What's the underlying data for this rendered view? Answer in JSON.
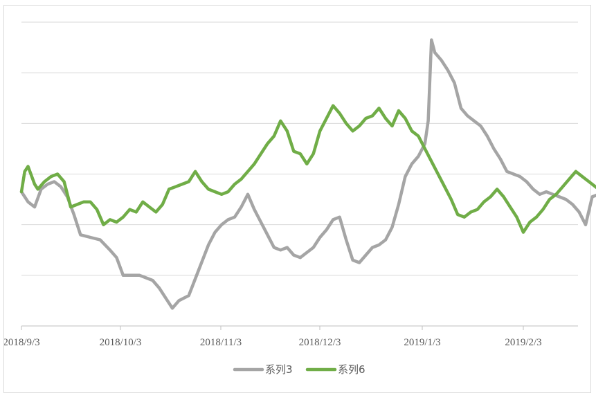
{
  "chart_data": {
    "type": "line",
    "title": "",
    "xlabel": "",
    "ylabel": "",
    "x_ticks": [
      "2018/9/3",
      "2018/10/3",
      "2018/11/3",
      "2018/12/3",
      "2019/1/3",
      "2019/2/3"
    ],
    "x_range": [
      "2018-09-03",
      "2019-03-01"
    ],
    "y_range": [
      0,
      6
    ],
    "grid": true,
    "legend_position": "bottom",
    "series": [
      {
        "name": "系列3",
        "color": "#a5a5a5",
        "points": [
          [
            "2018-09-03",
            2.65
          ],
          [
            "2018-09-05",
            2.45
          ],
          [
            "2018-09-07",
            2.35
          ],
          [
            "2018-09-09",
            2.7
          ],
          [
            "2018-09-11",
            2.8
          ],
          [
            "2018-09-13",
            2.85
          ],
          [
            "2018-09-15",
            2.75
          ],
          [
            "2018-09-17",
            2.55
          ],
          [
            "2018-09-19",
            2.2
          ],
          [
            "2018-09-21",
            1.8
          ],
          [
            "2018-09-24",
            1.75
          ],
          [
            "2018-09-27",
            1.7
          ],
          [
            "2018-09-30",
            1.5
          ],
          [
            "2018-10-02",
            1.35
          ],
          [
            "2018-10-04",
            1.0
          ],
          [
            "2018-10-06",
            1.0
          ],
          [
            "2018-10-09",
            1.0
          ],
          [
            "2018-10-11",
            0.95
          ],
          [
            "2018-10-13",
            0.9
          ],
          [
            "2018-10-15",
            0.75
          ],
          [
            "2018-10-17",
            0.55
          ],
          [
            "2018-10-19",
            0.35
          ],
          [
            "2018-10-21",
            0.5
          ],
          [
            "2018-10-24",
            0.6
          ],
          [
            "2018-10-27",
            1.1
          ],
          [
            "2018-10-30",
            1.6
          ],
          [
            "2018-11-01",
            1.85
          ],
          [
            "2018-11-03",
            2.0
          ],
          [
            "2018-11-05",
            2.1
          ],
          [
            "2018-11-07",
            2.15
          ],
          [
            "2018-11-09",
            2.35
          ],
          [
            "2018-11-11",
            2.6
          ],
          [
            "2018-11-13",
            2.3
          ],
          [
            "2018-11-15",
            2.05
          ],
          [
            "2018-11-17",
            1.8
          ],
          [
            "2018-11-19",
            1.55
          ],
          [
            "2018-11-21",
            1.5
          ],
          [
            "2018-11-23",
            1.55
          ],
          [
            "2018-11-25",
            1.4
          ],
          [
            "2018-11-27",
            1.35
          ],
          [
            "2018-11-29",
            1.45
          ],
          [
            "2018-12-01",
            1.55
          ],
          [
            "2018-12-03",
            1.75
          ],
          [
            "2018-12-05",
            1.9
          ],
          [
            "2018-12-07",
            2.1
          ],
          [
            "2018-12-09",
            2.15
          ],
          [
            "2018-12-11",
            1.7
          ],
          [
            "2018-12-13",
            1.3
          ],
          [
            "2018-12-15",
            1.25
          ],
          [
            "2018-12-17",
            1.4
          ],
          [
            "2018-12-19",
            1.55
          ],
          [
            "2018-12-21",
            1.6
          ],
          [
            "2018-12-23",
            1.7
          ],
          [
            "2018-12-25",
            1.95
          ],
          [
            "2018-12-27",
            2.4
          ],
          [
            "2018-12-29",
            2.95
          ],
          [
            "2018-12-31",
            3.2
          ],
          [
            "2019-01-02",
            3.35
          ],
          [
            "2019-01-04",
            3.6
          ],
          [
            "2019-01-05",
            4.05
          ],
          [
            "2019-01-06",
            5.65
          ],
          [
            "2019-01-07",
            5.4
          ],
          [
            "2019-01-09",
            5.25
          ],
          [
            "2019-01-11",
            5.05
          ],
          [
            "2019-01-13",
            4.8
          ],
          [
            "2019-01-15",
            4.3
          ],
          [
            "2019-01-17",
            4.15
          ],
          [
            "2019-01-19",
            4.05
          ],
          [
            "2019-01-21",
            3.95
          ],
          [
            "2019-01-23",
            3.75
          ],
          [
            "2019-01-25",
            3.5
          ],
          [
            "2019-01-27",
            3.3
          ],
          [
            "2019-01-29",
            3.05
          ],
          [
            "2019-01-31",
            3.0
          ],
          [
            "2019-02-02",
            2.95
          ],
          [
            "2019-02-04",
            2.85
          ],
          [
            "2019-02-06",
            2.7
          ],
          [
            "2019-02-08",
            2.6
          ],
          [
            "2019-02-10",
            2.65
          ],
          [
            "2019-02-12",
            2.6
          ],
          [
            "2019-02-14",
            2.55
          ],
          [
            "2019-02-16",
            2.5
          ],
          [
            "2019-02-18",
            2.4
          ],
          [
            "2019-02-20",
            2.25
          ],
          [
            "2019-02-22",
            2.0
          ],
          [
            "2019-02-24",
            2.55
          ],
          [
            "2019-02-26",
            2.6
          ],
          [
            "2019-02-28",
            2.45
          ],
          [
            "2019-03-01",
            2.4
          ]
        ]
      },
      {
        "name": "系列6",
        "color": "#70ad47",
        "points": [
          [
            "2018-09-03",
            2.65
          ],
          [
            "2018-09-04",
            3.05
          ],
          [
            "2018-09-05",
            3.15
          ],
          [
            "2018-09-07",
            2.8
          ],
          [
            "2018-09-08",
            2.7
          ],
          [
            "2018-09-10",
            2.85
          ],
          [
            "2018-09-12",
            2.95
          ],
          [
            "2018-09-14",
            3.0
          ],
          [
            "2018-09-16",
            2.85
          ],
          [
            "2018-09-18",
            2.35
          ],
          [
            "2018-09-20",
            2.4
          ],
          [
            "2018-09-22",
            2.45
          ],
          [
            "2018-09-24",
            2.45
          ],
          [
            "2018-09-26",
            2.3
          ],
          [
            "2018-09-28",
            2.0
          ],
          [
            "2018-09-30",
            2.1
          ],
          [
            "2018-10-02",
            2.05
          ],
          [
            "2018-10-04",
            2.15
          ],
          [
            "2018-10-06",
            2.3
          ],
          [
            "2018-10-08",
            2.25
          ],
          [
            "2018-10-10",
            2.45
          ],
          [
            "2018-10-12",
            2.35
          ],
          [
            "2018-10-14",
            2.25
          ],
          [
            "2018-10-16",
            2.4
          ],
          [
            "2018-10-18",
            2.7
          ],
          [
            "2018-10-20",
            2.75
          ],
          [
            "2018-10-22",
            2.8
          ],
          [
            "2018-10-24",
            2.85
          ],
          [
            "2018-10-26",
            3.05
          ],
          [
            "2018-10-28",
            2.85
          ],
          [
            "2018-10-30",
            2.7
          ],
          [
            "2018-11-01",
            2.65
          ],
          [
            "2018-11-03",
            2.6
          ],
          [
            "2018-11-05",
            2.65
          ],
          [
            "2018-11-07",
            2.8
          ],
          [
            "2018-11-09",
            2.9
          ],
          [
            "2018-11-11",
            3.05
          ],
          [
            "2018-11-13",
            3.2
          ],
          [
            "2018-11-15",
            3.4
          ],
          [
            "2018-11-17",
            3.6
          ],
          [
            "2018-11-19",
            3.75
          ],
          [
            "2018-11-21",
            4.05
          ],
          [
            "2018-11-23",
            3.85
          ],
          [
            "2018-11-25",
            3.45
          ],
          [
            "2018-11-27",
            3.4
          ],
          [
            "2018-11-29",
            3.2
          ],
          [
            "2018-12-01",
            3.4
          ],
          [
            "2018-12-03",
            3.85
          ],
          [
            "2018-12-05",
            4.1
          ],
          [
            "2018-12-07",
            4.35
          ],
          [
            "2018-12-09",
            4.2
          ],
          [
            "2018-12-11",
            4.0
          ],
          [
            "2018-12-13",
            3.85
          ],
          [
            "2018-12-15",
            3.95
          ],
          [
            "2018-12-17",
            4.1
          ],
          [
            "2018-12-19",
            4.15
          ],
          [
            "2018-12-21",
            4.3
          ],
          [
            "2018-12-23",
            4.1
          ],
          [
            "2018-12-25",
            3.95
          ],
          [
            "2018-12-27",
            4.25
          ],
          [
            "2018-12-29",
            4.1
          ],
          [
            "2018-12-31",
            3.85
          ],
          [
            "2019-01-02",
            3.75
          ],
          [
            "2019-01-04",
            3.5
          ],
          [
            "2019-01-06",
            3.25
          ],
          [
            "2019-01-08",
            3.0
          ],
          [
            "2019-01-10",
            2.75
          ],
          [
            "2019-01-12",
            2.5
          ],
          [
            "2019-01-14",
            2.2
          ],
          [
            "2019-01-16",
            2.15
          ],
          [
            "2019-01-18",
            2.25
          ],
          [
            "2019-01-20",
            2.3
          ],
          [
            "2019-01-22",
            2.45
          ],
          [
            "2019-01-24",
            2.55
          ],
          [
            "2019-01-26",
            2.7
          ],
          [
            "2019-01-28",
            2.55
          ],
          [
            "2019-01-30",
            2.35
          ],
          [
            "2019-02-01",
            2.15
          ],
          [
            "2019-02-03",
            1.85
          ],
          [
            "2019-02-05",
            2.05
          ],
          [
            "2019-02-07",
            2.15
          ],
          [
            "2019-02-09",
            2.3
          ],
          [
            "2019-02-11",
            2.5
          ],
          [
            "2019-02-13",
            2.6
          ],
          [
            "2019-02-15",
            2.75
          ],
          [
            "2019-02-17",
            2.9
          ],
          [
            "2019-02-19",
            3.05
          ],
          [
            "2019-02-21",
            2.95
          ],
          [
            "2019-02-23",
            2.85
          ],
          [
            "2019-02-25",
            2.75
          ],
          [
            "2019-02-27",
            2.65
          ],
          [
            "2019-03-01",
            2.6
          ]
        ]
      }
    ]
  }
}
